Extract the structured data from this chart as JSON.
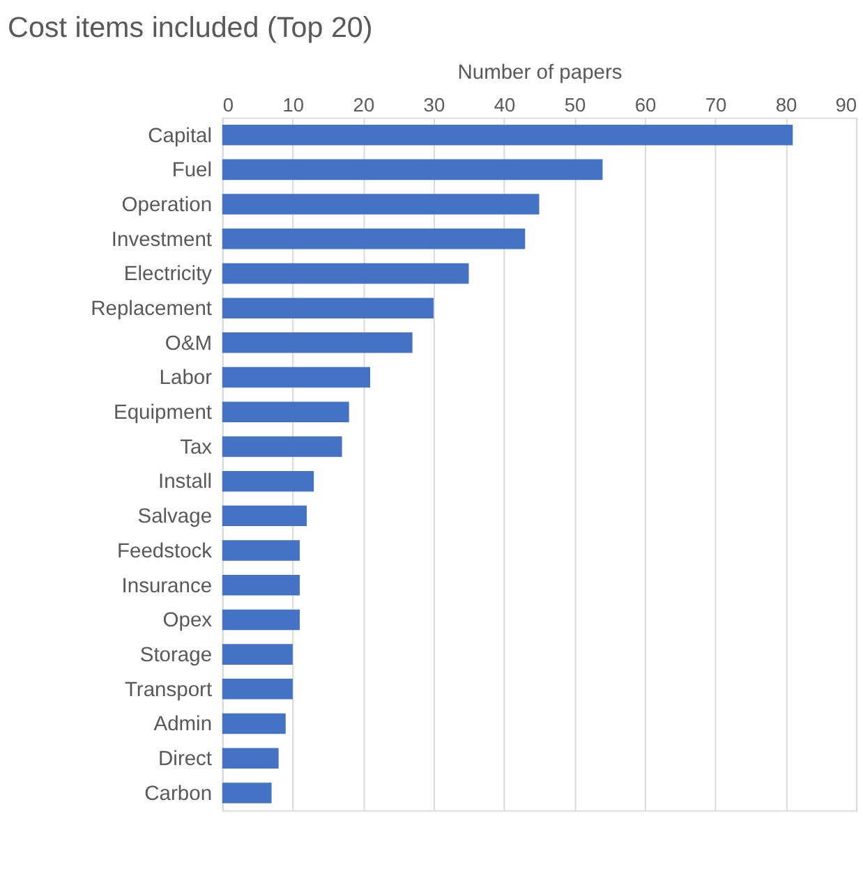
{
  "chart_data": {
    "type": "bar",
    "orientation": "horizontal",
    "title": "Cost items included (Top 20)",
    "xlabel": "Number of papers",
    "categories": [
      "Capital",
      "Fuel",
      "Operation",
      "Investment",
      "Electricity",
      "Replacement",
      "O&M",
      "Labor",
      "Equipment",
      "Tax",
      "Install",
      "Salvage",
      "Feedstock",
      "Insurance",
      "Opex",
      "Storage",
      "Transport",
      "Admin",
      "Direct",
      "Carbon"
    ],
    "values": [
      81,
      54,
      45,
      43,
      35,
      30,
      27,
      21,
      18,
      17,
      13,
      12,
      11,
      11,
      11,
      10,
      10,
      9,
      8,
      7
    ],
    "color": "#4472c4",
    "xlim": [
      0,
      90
    ],
    "xticks": [
      0,
      10,
      20,
      30,
      40,
      50,
      60,
      70,
      80,
      90
    ],
    "grid": "x"
  }
}
